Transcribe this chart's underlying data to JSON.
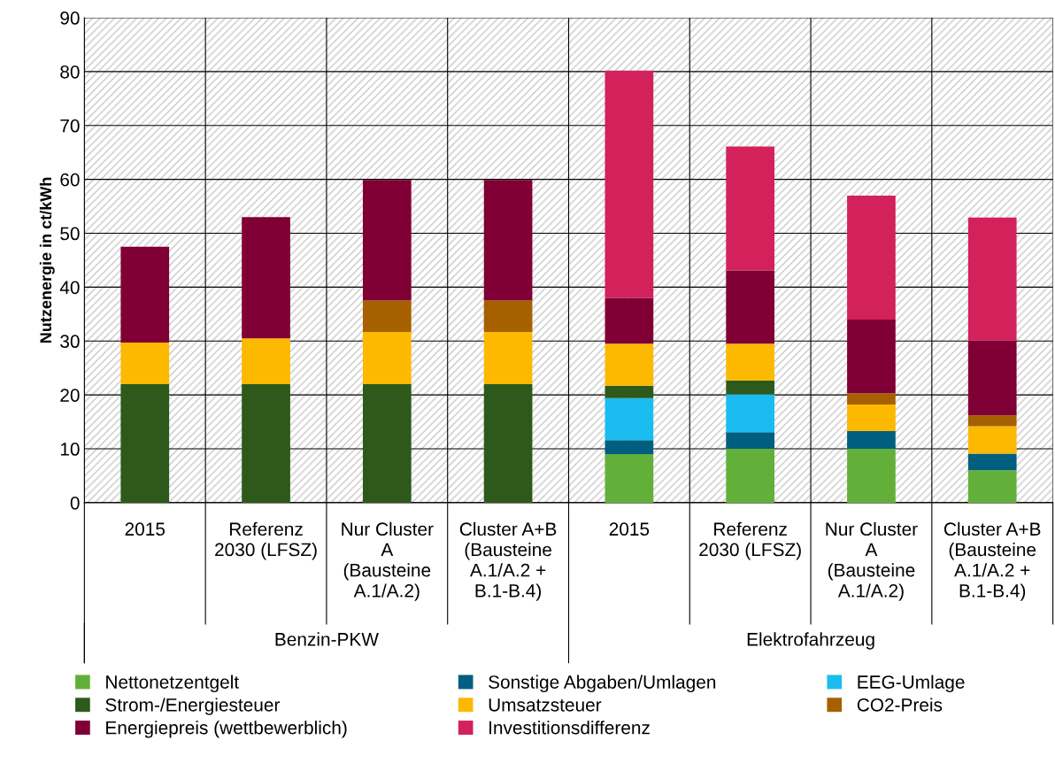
{
  "chart_data": {
    "type": "bar",
    "stacked": true,
    "ylabel": "Nutzenergie in ct/kWh",
    "categories": [
      "2015",
      "Referenz\n2030 (LFSZ)",
      "Nur Cluster\nA\n(Bausteine\nA.1/A.2)",
      "Cluster A+B\n(Bausteine\nA.1/A.2 +\nB.1-B.4)",
      "2015",
      "Referenz\n2030 (LFSZ)",
      "Nur Cluster\nA\n(Bausteine\nA.1/A.2)",
      "Cluster A+B\n(Bausteine\nA.1/A.2 +\nB.1-B.4)"
    ],
    "annotations": [
      "Benzin-PKW",
      "Elektrofahrzeug"
    ],
    "ylim": [
      0,
      90
    ],
    "yticks": [
      0,
      10,
      20,
      30,
      40,
      50,
      60,
      70,
      80,
      90
    ],
    "grid": "y",
    "legend": "bottom",
    "series": [
      {
        "name": "Nettonetzentgelt",
        "color": "#62b03a",
        "values": [
          null,
          null,
          null,
          null,
          9,
          10,
          10,
          6
        ]
      },
      {
        "name": "Sonstige Abgaben/Umlagen",
        "color": "#005f7f",
        "values": [
          null,
          null,
          null,
          null,
          2.6,
          3.1,
          3.3,
          3.1
        ]
      },
      {
        "name": "EEG-Umlage",
        "color": "#1bbcf0",
        "values": [
          null,
          null,
          null,
          null,
          7.8,
          7,
          null,
          null
        ]
      },
      {
        "name": "Strom-/Energiesteuer",
        "color": "#2d5a1b",
        "values": [
          22,
          22,
          22,
          22,
          2.3,
          2.6,
          null,
          null
        ]
      },
      {
        "name": "Umsatzsteuer",
        "color": "#fcb900",
        "values": [
          7.7,
          8.5,
          9.7,
          9.7,
          7.8,
          6.8,
          4.9,
          5.1
        ]
      },
      {
        "name": "CO2-Preis",
        "color": "#a66000",
        "values": [
          null,
          null,
          5.8,
          5.8,
          null,
          null,
          2.1,
          2
        ]
      },
      {
        "name": "Energiepreis (wettbewerblich)",
        "color": "#800035",
        "values": [
          17.8,
          22.5,
          22.4,
          22.4,
          8.5,
          13.6,
          13.7,
          13.9
        ]
      },
      {
        "name": "Investitionsdifferenz",
        "color": "#d2215b",
        "values": [
          null,
          null,
          null,
          null,
          42.2,
          23,
          23,
          22.8
        ]
      }
    ]
  }
}
